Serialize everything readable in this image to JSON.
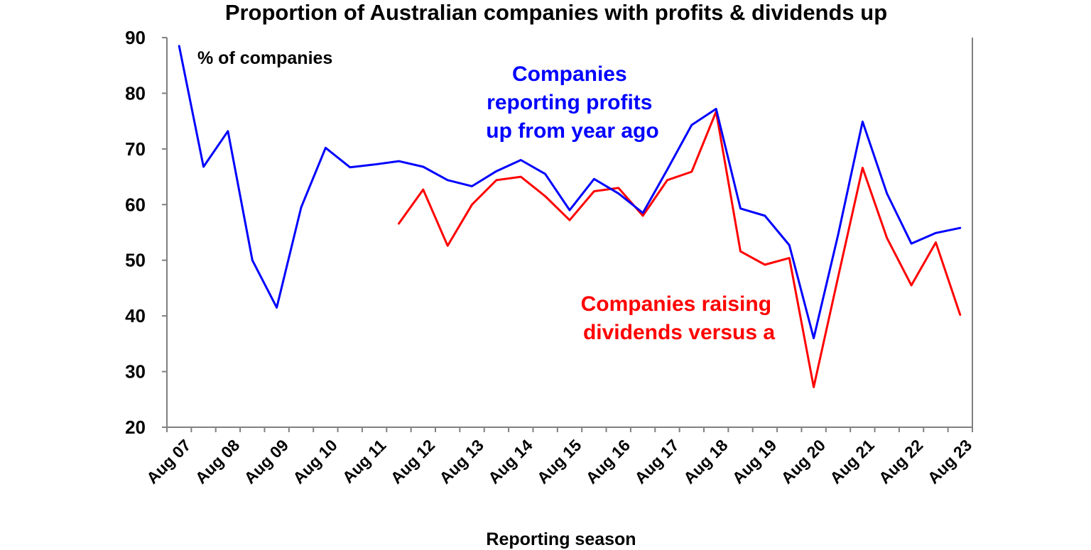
{
  "chart_data": {
    "type": "line",
    "title": "Proportion of Australian companies with profits & dividends up",
    "xlabel": "Reporting season",
    "ylabel": "% of companies",
    "ylim": [
      20,
      90
    ],
    "yticks": [
      "20",
      "30",
      "40",
      "50",
      "60",
      "70",
      "80",
      "90"
    ],
    "xtick_labels": [
      "Aug 07",
      "Aug 08",
      "Aug 09",
      "Aug 10",
      "Aug 11",
      "Aug 12",
      "Aug 13",
      "Aug 14",
      "Aug 15",
      "Aug 16",
      "Aug 17",
      "Aug 18",
      "Aug 19",
      "Aug 20",
      "Aug 21",
      "Aug 22",
      "Aug 23"
    ],
    "x": [
      "Aug 07",
      "Feb 08",
      "Aug 08",
      "Feb 09",
      "Aug 09",
      "Feb 10",
      "Aug 10",
      "Feb 11",
      "Aug 11",
      "Feb 12",
      "Aug 12",
      "Feb 13",
      "Aug 13",
      "Feb 14",
      "Aug 14",
      "Feb 15",
      "Aug 15",
      "Feb 16",
      "Aug 16",
      "Feb 17",
      "Aug 17",
      "Feb 18",
      "Aug 18",
      "Feb 19",
      "Aug 19",
      "Feb 20",
      "Aug 20",
      "Feb 21",
      "Aug 21",
      "Feb 22",
      "Aug 22",
      "Feb 23",
      "Aug 23"
    ],
    "series": [
      {
        "name": "Companies reporting profits up from year ago",
        "color": "#0000ff",
        "values": [
          88.5,
          66.8,
          73.2,
          50.0,
          41.5,
          59.5,
          70.2,
          66.7,
          67.2,
          67.8,
          66.8,
          64.4,
          63.3,
          66.0,
          68.0,
          65.5,
          59.0,
          64.6,
          62.0,
          58.5,
          66.3,
          74.3,
          77.2,
          59.3,
          58.0,
          52.7,
          36.0,
          54.6,
          74.9,
          62.0,
          53.0,
          54.9,
          55.8
        ]
      },
      {
        "name": "Companies raising dividends versus a",
        "color": "#ff0000",
        "values": [
          null,
          null,
          null,
          null,
          null,
          null,
          null,
          null,
          null,
          56.6,
          62.7,
          52.6,
          60.0,
          64.4,
          65.0,
          61.5,
          57.2,
          62.4,
          63.0,
          58.0,
          64.4,
          65.9,
          76.7,
          51.6,
          49.2,
          50.4,
          27.2,
          47.0,
          66.6,
          54.0,
          45.5,
          53.2,
          40.2
        ]
      }
    ],
    "annotations": {
      "unit_label": "% of companies",
      "profits_label": [
        "Companies",
        "reporting profits",
        "up from year ago"
      ],
      "dividends_label": [
        "Companies raising",
        "dividends versus a"
      ]
    },
    "colors": {
      "axis": "#808080",
      "text": "#000000",
      "profits": "#0000ff",
      "dividends": "#ff0000"
    }
  }
}
